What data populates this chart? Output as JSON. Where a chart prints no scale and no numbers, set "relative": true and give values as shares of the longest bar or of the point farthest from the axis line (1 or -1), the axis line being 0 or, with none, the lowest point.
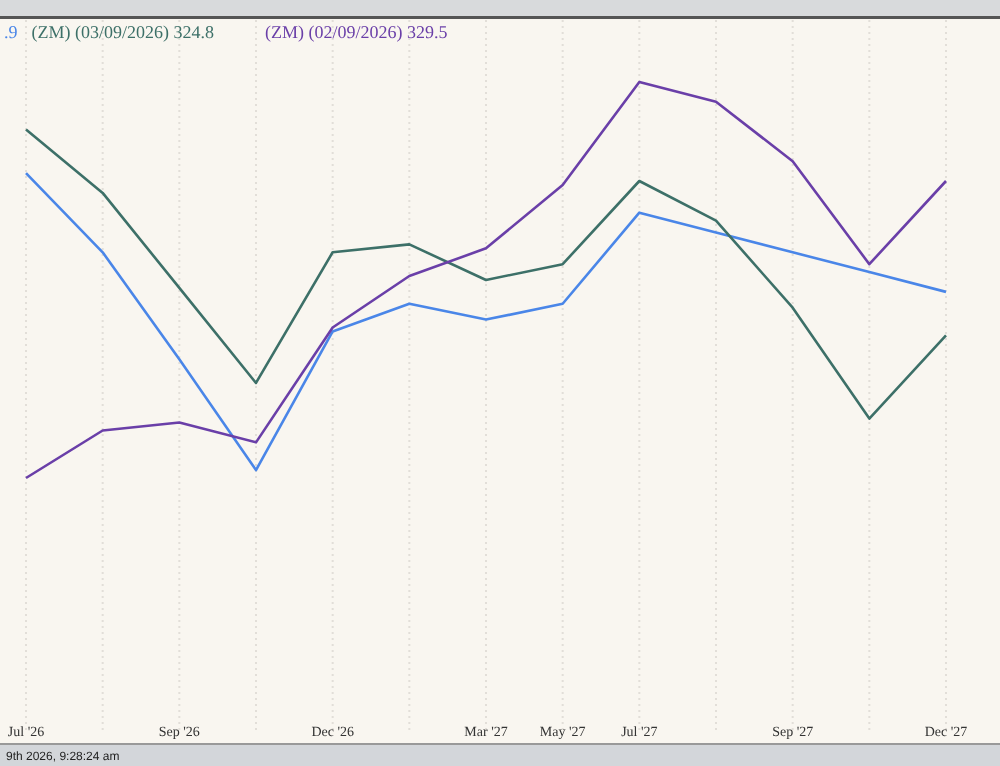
{
  "chart_data": {
    "type": "line",
    "relative": true,
    "categories": [
      "Jul '26",
      null,
      "Sep '26",
      null,
      "Dec '26",
      null,
      "Mar '27",
      "May '27",
      "Jul '27",
      null,
      "Sep '27",
      null,
      "Dec '27"
    ],
    "series": [
      {
        "name": ".9",
        "color": "#4a86e8",
        "values": [
          0.77,
          0.57,
          0.3,
          0.02,
          0.37,
          0.44,
          0.4,
          0.44,
          0.67,
          0.62,
          0.57,
          0.52,
          0.47
        ]
      },
      {
        "name": "(ZM) (03/09/2026) 324.8",
        "color": "#3d7068",
        "values": [
          0.88,
          0.72,
          0.48,
          0.24,
          0.57,
          0.59,
          0.5,
          0.54,
          0.75,
          0.65,
          0.43,
          0.15,
          0.36
        ]
      },
      {
        "name": "(ZM) (02/09/2026) 329.5",
        "color": "#6a3fa8",
        "values": [
          0,
          0.12,
          0.14,
          0.09,
          0.38,
          0.51,
          0.58,
          0.74,
          1,
          0.95,
          0.8,
          0.54,
          0.75
        ]
      }
    ],
    "legend": "top left",
    "grid": "x",
    "marker": "none",
    "line_style": "solid",
    "annotations": [
      "9th 2026, 9:28:24 am"
    ]
  }
}
